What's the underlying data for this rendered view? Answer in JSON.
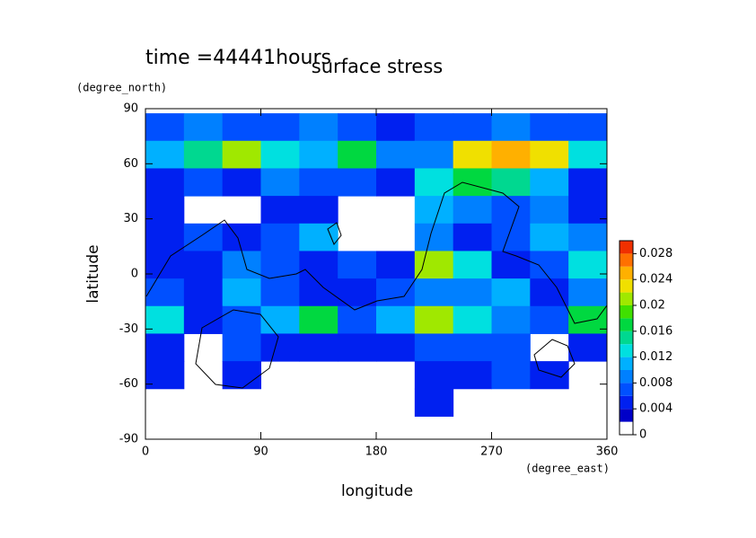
{
  "chart_data": {
    "type": "contour",
    "title": "surface stress",
    "annotation": "time =44441hours",
    "x_label": "longitude",
    "x_unit": "(degree_east)",
    "y_label": "latitude",
    "y_unit": "(degree_north)",
    "x": [
      15,
      45,
      75,
      105,
      135,
      165,
      195,
      225,
      255,
      285,
      315,
      345
    ],
    "y": [
      80,
      65,
      50,
      35,
      20,
      5,
      -10,
      -25,
      -40,
      -55,
      -70
    ],
    "z": [
      [
        0.006,
        0.008,
        0.006,
        0.006,
        0.008,
        0.006,
        0.004,
        0.006,
        0.006,
        0.008,
        0.006,
        0.006
      ],
      [
        0.01,
        0.014,
        0.02,
        0.012,
        0.01,
        0.016,
        0.008,
        0.008,
        0.022,
        0.024,
        0.022,
        0.012
      ],
      [
        0.004,
        0.006,
        0.004,
        0.008,
        0.006,
        0.006,
        0.004,
        0.012,
        0.016,
        0.014,
        0.01,
        0.004
      ],
      [
        0.004,
        null,
        null,
        0.004,
        0.004,
        null,
        null,
        0.01,
        0.008,
        0.006,
        0.008,
        0.004
      ],
      [
        0.004,
        0.006,
        0.004,
        0.006,
        0.01,
        null,
        null,
        0.008,
        0.004,
        0.006,
        0.01,
        0.008
      ],
      [
        0.004,
        0.004,
        0.008,
        0.006,
        0.004,
        0.006,
        0.004,
        0.02,
        0.012,
        0.004,
        0.006,
        0.012
      ],
      [
        0.006,
        0.004,
        0.01,
        0.006,
        0.004,
        0.004,
        0.006,
        0.008,
        0.008,
        0.01,
        0.004,
        0.008
      ],
      [
        0.012,
        0.004,
        0.006,
        0.01,
        0.016,
        0.006,
        0.01,
        0.02,
        0.012,
        0.008,
        0.006,
        0.016
      ],
      [
        0.004,
        null,
        0.006,
        0.004,
        0.004,
        0.004,
        0.004,
        0.006,
        0.006,
        0.006,
        null,
        0.004
      ],
      [
        0.004,
        null,
        0.004,
        null,
        null,
        null,
        null,
        0.004,
        0.004,
        0.006,
        0.004,
        null
      ],
      [
        null,
        null,
        null,
        null,
        null,
        null,
        null,
        0.004,
        null,
        null,
        null,
        null
      ]
    ],
    "xlim": [
      0,
      360
    ],
    "xticks": [
      0,
      90,
      180,
      270,
      360
    ],
    "ylim": [
      -90,
      90
    ],
    "yticks": [
      -90,
      -60,
      -30,
      0,
      30,
      60,
      90
    ],
    "clim": [
      0,
      0.03
    ],
    "cticks": [
      0,
      0.004,
      0.008,
      0.012,
      0.016,
      0.02,
      0.024,
      0.028
    ],
    "colors": [
      "#ffffff",
      "#0000c8",
      "#0020f0",
      "#0050ff",
      "#0080ff",
      "#00b0ff",
      "#00e0e0",
      "#00d890",
      "#00d840",
      "#40e000",
      "#a0e800",
      "#f0e000",
      "#ffb000",
      "#ff7000",
      "#f03000"
    ]
  }
}
